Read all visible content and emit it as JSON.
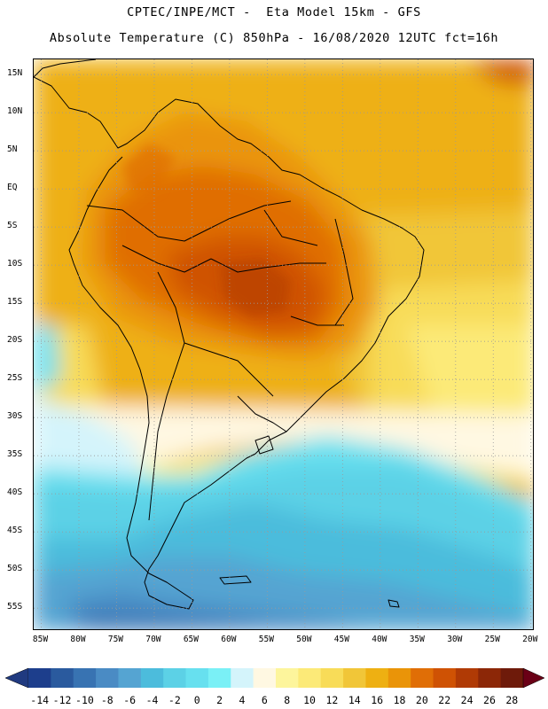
{
  "header": {
    "line1": "CPTEC/INPE/MCT -  Eta Model 15km - GFS",
    "line2": "Absolute Temperature (C) 850hPa - 16/08/2020 12UTC fct=16h"
  },
  "map": {
    "lat_labels": [
      "15N",
      "10N",
      "5N",
      "EQ",
      "5S",
      "10S",
      "15S",
      "20S",
      "25S",
      "30S",
      "35S",
      "40S",
      "45S",
      "50S",
      "55S"
    ],
    "lon_labels": [
      "85W",
      "80W",
      "75W",
      "70W",
      "65W",
      "60W",
      "55W",
      "50W",
      "45W",
      "40W",
      "35W",
      "30W",
      "25W",
      "20W"
    ],
    "lat_range": [
      17,
      -58
    ],
    "lon_range": [
      -86,
      -19.5
    ],
    "grid": true
  },
  "colorbar": {
    "labels": [
      "-14",
      "-12",
      "-10",
      "-8",
      "-6",
      "-4",
      "-2",
      "0",
      "2",
      "4",
      "6",
      "8",
      "10",
      "12",
      "14",
      "16",
      "18",
      "20",
      "22",
      "24",
      "26",
      "28"
    ],
    "colors": [
      "#1d3e8c",
      "#2a5a9e",
      "#3873b2",
      "#4a8bc4",
      "#55a4d2",
      "#4cbcdc",
      "#5cd1e6",
      "#67e0ef",
      "#7af0f6",
      "#d4f4fb",
      "#fff8e2",
      "#fdf59c",
      "#fcea78",
      "#f8dc58",
      "#f1c638",
      "#eeb012",
      "#ea9408",
      "#e06e06",
      "#cf5204",
      "#b03a05",
      "#8c2707",
      "#6e1a0a"
    ],
    "low_arrow_color": "#203a80",
    "high_arrow_color": "#6a0016"
  }
}
